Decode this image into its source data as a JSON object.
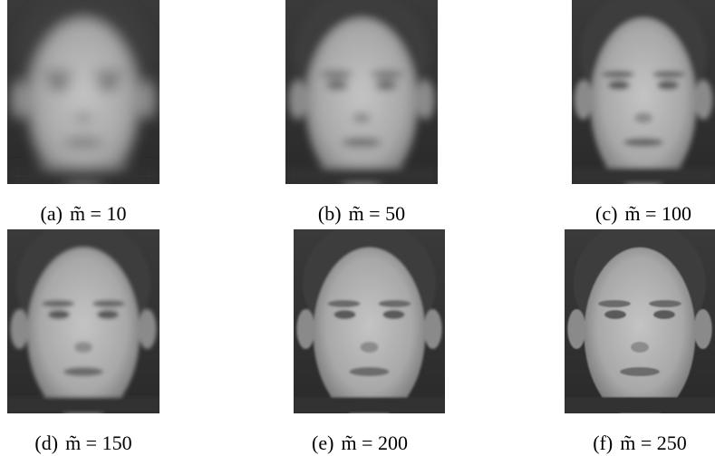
{
  "figure": {
    "panels": [
      {
        "label": "(a)",
        "expression": "m̃ = 10"
      },
      {
        "label": "(b)",
        "expression": "m̃ = 50"
      },
      {
        "label": "(c)",
        "expression": "m̃ = 100"
      },
      {
        "label": "(d)",
        "expression": "m̃ = 150"
      },
      {
        "label": "(e)",
        "expression": "m̃ = 200"
      },
      {
        "label": "(f)",
        "expression": "m̃ = 250"
      }
    ]
  }
}
